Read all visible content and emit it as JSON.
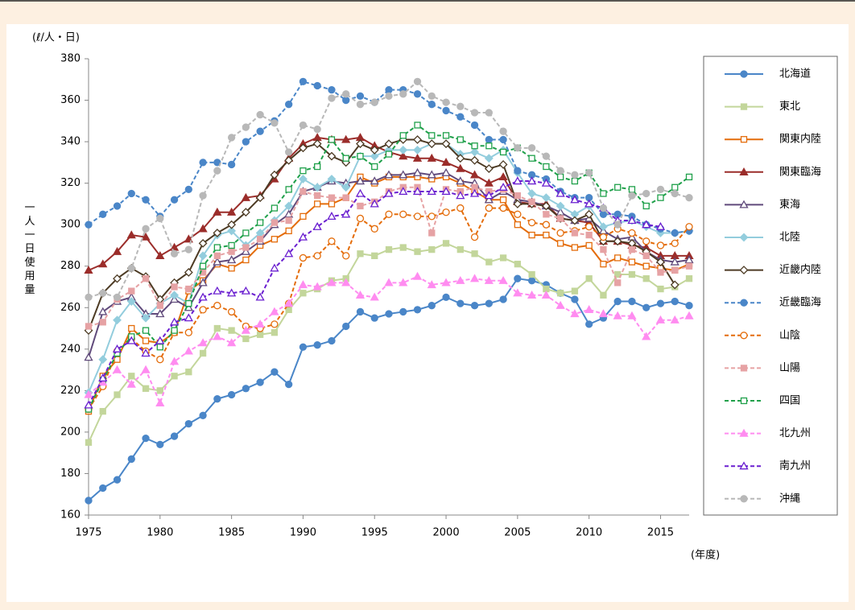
{
  "chart_data": {
    "type": "line",
    "unit_label": "(ℓ/人・日)",
    "y_label": "一人一日使用量",
    "x_label": "(年度)",
    "x": [
      1975,
      1976,
      1977,
      1978,
      1979,
      1980,
      1981,
      1982,
      1983,
      1984,
      1985,
      1986,
      1987,
      1988,
      1989,
      1990,
      1991,
      1992,
      1993,
      1994,
      1995,
      1996,
      1997,
      1998,
      1999,
      2000,
      2001,
      2002,
      2003,
      2004,
      2005,
      2006,
      2007,
      2008,
      2009,
      2010,
      2011,
      2012,
      2013,
      2014,
      2015,
      2016,
      2017
    ],
    "xlim": [
      1975,
      2017
    ],
    "xticks": [
      1975,
      1980,
      1985,
      1990,
      1995,
      2000,
      2005,
      2010,
      2015
    ],
    "ylim": [
      160,
      380
    ],
    "yticks": [
      160,
      180,
      200,
      220,
      240,
      260,
      280,
      300,
      320,
      340,
      360,
      380
    ],
    "legend": "right",
    "series": [
      {
        "name": "北海道",
        "color": "#4a86c8",
        "marker": "circle",
        "filled": true,
        "dashed": false,
        "values": [
          167,
          173,
          177,
          187,
          197,
          194,
          198,
          204,
          208,
          216,
          218,
          221,
          224,
          229,
          223,
          241,
          242,
          244,
          251,
          258,
          255,
          257,
          258,
          259,
          261,
          265,
          262,
          261,
          262,
          264,
          274,
          273,
          271,
          267,
          264,
          252,
          255,
          263,
          263,
          260,
          262,
          263,
          261
        ]
      },
      {
        "name": "東北",
        "color": "#c3d69b",
        "marker": "square",
        "filled": true,
        "dashed": false,
        "values": [
          195,
          210,
          218,
          227,
          221,
          220,
          227,
          229,
          238,
          250,
          249,
          245,
          247,
          248,
          259,
          267,
          269,
          273,
          274,
          286,
          285,
          288,
          289,
          287,
          288,
          291,
          288,
          286,
          282,
          284,
          281,
          276,
          269,
          267,
          268,
          274,
          266,
          276,
          276,
          274,
          269,
          270,
          274
        ]
      },
      {
        "name": "関東内陸",
        "color": "#e46c0a",
        "marker": "square",
        "filled": false,
        "dashed": false,
        "values": [
          210,
          227,
          235,
          250,
          244,
          243,
          248,
          268,
          273,
          281,
          279,
          283,
          290,
          293,
          297,
          304,
          310,
          310,
          313,
          323,
          320,
          323,
          323,
          323,
          322,
          323,
          320,
          316,
          312,
          312,
          300,
          295,
          295,
          291,
          289,
          290,
          281,
          284,
          282,
          280,
          279,
          278,
          281
        ]
      },
      {
        "name": "関東臨海",
        "color": "#9b2d2a",
        "marker": "triangle",
        "filled": true,
        "dashed": false,
        "values": [
          278,
          281,
          287,
          295,
          294,
          285,
          289,
          293,
          298,
          306,
          306,
          313,
          314,
          322,
          332,
          339,
          342,
          341,
          341,
          342,
          338,
          335,
          333,
          332,
          332,
          330,
          327,
          324,
          320,
          323,
          311,
          310,
          310,
          303,
          302,
          301,
          292,
          292,
          290,
          289,
          285,
          285,
          285
        ]
      },
      {
        "name": "東海",
        "color": "#604a7b",
        "marker": "triangle",
        "filled": false,
        "dashed": false,
        "values": [
          236,
          258,
          263,
          265,
          257,
          257,
          264,
          260,
          272,
          282,
          283,
          287,
          292,
          300,
          305,
          316,
          318,
          321,
          320,
          321,
          321,
          324,
          324,
          325,
          324,
          325,
          321,
          320,
          312,
          316,
          312,
          311,
          309,
          306,
          302,
          303,
          297,
          293,
          294,
          287,
          283,
          282,
          283
        ]
      },
      {
        "name": "北陸",
        "color": "#93cddd",
        "marker": "diamond",
        "filled": true,
        "dashed": false,
        "values": [
          219,
          235,
          254,
          263,
          255,
          262,
          266,
          262,
          285,
          295,
          297,
          290,
          296,
          302,
          309,
          322,
          318,
          322,
          318,
          333,
          333,
          336,
          336,
          336,
          339,
          339,
          334,
          335,
          332,
          336,
          325,
          315,
          313,
          309,
          305,
          309,
          299,
          301,
          302,
          299,
          296,
          296,
          297
        ]
      },
      {
        "name": "近畿内陸",
        "color": "#4d3b24",
        "marker": "diamond",
        "filled": false,
        "dashed": false,
        "values": [
          249,
          267,
          274,
          279,
          275,
          264,
          272,
          277,
          291,
          296,
          300,
          306,
          313,
          324,
          331,
          337,
          339,
          333,
          330,
          339,
          336,
          339,
          341,
          341,
          339,
          339,
          332,
          331,
          327,
          329,
          310,
          310,
          309,
          303,
          302,
          305,
          292,
          292,
          291,
          287,
          282,
          271,
          null
        ]
      },
      {
        "name": "近畿臨海",
        "color": "#4a86c8",
        "marker": "circle",
        "filled": true,
        "dashed": true,
        "values": [
          300,
          305,
          309,
          315,
          312,
          304,
          312,
          317,
          330,
          330,
          329,
          340,
          345,
          350,
          358,
          369,
          367,
          365,
          360,
          362,
          359,
          365,
          365,
          363,
          358,
          355,
          352,
          348,
          341,
          341,
          326,
          324,
          322,
          316,
          313,
          313,
          305,
          305,
          304,
          300,
          298,
          296,
          297
        ]
      },
      {
        "name": "山陰",
        "color": "#e46c0a",
        "marker": "circle",
        "filled": false,
        "dashed": true,
        "values": [
          211,
          222,
          239,
          245,
          239,
          235,
          248,
          248,
          259,
          261,
          258,
          251,
          250,
          252,
          262,
          284,
          285,
          292,
          285,
          303,
          298,
          305,
          305,
          304,
          304,
          306,
          308,
          294,
          308,
          308,
          305,
          301,
          300,
          296,
          297,
          299,
          294,
          298,
          296,
          292,
          290,
          291,
          299
        ]
      },
      {
        "name": "山陽",
        "color": "#e6a2a4",
        "marker": "square",
        "filled": true,
        "dashed": true,
        "values": [
          251,
          253,
          264,
          268,
          274,
          261,
          270,
          269,
          277,
          285,
          287,
          289,
          293,
          301,
          302,
          316,
          314,
          313,
          313,
          309,
          311,
          316,
          318,
          318,
          296,
          317,
          316,
          318,
          316,
          317,
          314,
          311,
          305,
          303,
          296,
          295,
          288,
          272,
          288,
          285,
          277,
          278,
          280
        ]
      },
      {
        "name": "四国",
        "color": "#1fa04a",
        "marker": "square",
        "filled": false,
        "dashed": true,
        "values": [
          211,
          225,
          238,
          246,
          249,
          241,
          249,
          262,
          280,
          289,
          290,
          296,
          301,
          308,
          317,
          326,
          328,
          341,
          332,
          333,
          328,
          334,
          343,
          348,
          343,
          343,
          341,
          338,
          338,
          335,
          337,
          332,
          328,
          323,
          321,
          325,
          315,
          318,
          317,
          309,
          313,
          318,
          323
        ]
      },
      {
        "name": "北九州",
        "color": "#ff8cf0",
        "marker": "triangle",
        "filled": true,
        "dashed": true,
        "values": [
          218,
          224,
          230,
          223,
          230,
          214,
          234,
          239,
          243,
          246,
          243,
          249,
          252,
          258,
          262,
          271,
          270,
          272,
          272,
          266,
          265,
          272,
          272,
          275,
          271,
          272,
          273,
          274,
          273,
          273,
          267,
          266,
          266,
          261,
          257,
          259,
          257,
          256,
          256,
          246,
          254,
          254,
          256
        ]
      },
      {
        "name": "南九州",
        "color": "#6a1fd0",
        "marker": "triangle",
        "filled": false,
        "dashed": true,
        "values": [
          213,
          226,
          240,
          244,
          238,
          244,
          253,
          255,
          265,
          268,
          267,
          268,
          265,
          279,
          286,
          294,
          299,
          304,
          305,
          315,
          310,
          315,
          316,
          316,
          316,
          316,
          314,
          315,
          314,
          318,
          321,
          321,
          320,
          315,
          312,
          310,
          308,
          302,
          302,
          300,
          299,
          null,
          null
        ]
      },
      {
        "name": "沖縄",
        "color": "#b8b8b8",
        "marker": "circle",
        "filled": true,
        "dashed": true,
        "values": [
          265,
          267,
          265,
          279,
          298,
          303,
          286,
          288,
          314,
          326,
          342,
          347,
          353,
          349,
          335,
          348,
          346,
          361,
          363,
          358,
          359,
          362,
          363,
          369,
          362,
          359,
          357,
          354,
          354,
          345,
          337,
          337,
          333,
          326,
          324,
          325,
          308,
          300,
          314,
          315,
          317,
          315,
          313
        ]
      }
    ]
  }
}
